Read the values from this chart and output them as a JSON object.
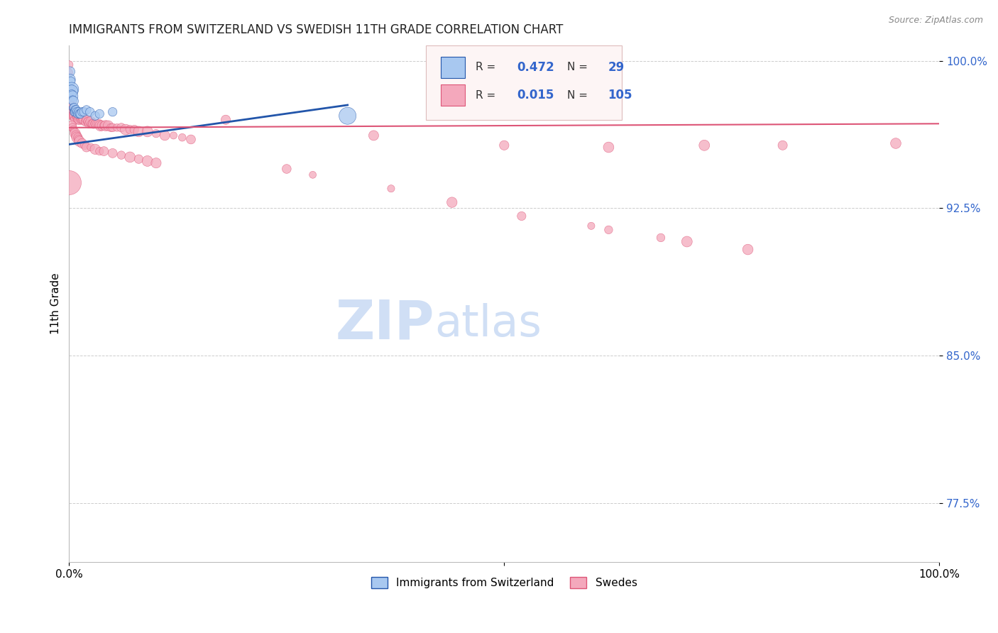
{
  "title": "IMMIGRANTS FROM SWITZERLAND VS SWEDISH 11TH GRADE CORRELATION CHART",
  "source": "Source: ZipAtlas.com",
  "ylabel": "11th Grade",
  "xlim": [
    0.0,
    1.0
  ],
  "ylim": [
    0.745,
    1.008
  ],
  "yticks": [
    1.0,
    0.925,
    0.85,
    0.775
  ],
  "ytick_labels": [
    "100.0%",
    "92.5%",
    "85.0%",
    "77.5%"
  ],
  "blue_color": "#A8C8F0",
  "pink_color": "#F4A8BC",
  "trend_blue_color": "#2255AA",
  "trend_pink_color": "#DD5577",
  "watermark_color": "#D0DFF5",
  "blue_scatter_x": [
    0.001,
    0.001,
    0.002,
    0.002,
    0.003,
    0.003,
    0.003,
    0.004,
    0.004,
    0.005,
    0.005,
    0.006,
    0.006,
    0.007,
    0.007,
    0.008,
    0.009,
    0.01,
    0.011,
    0.012,
    0.013,
    0.015,
    0.017,
    0.02,
    0.024,
    0.03,
    0.035,
    0.05,
    0.32
  ],
  "blue_scatter_y": [
    0.9945,
    0.9905,
    0.9895,
    0.9855,
    0.9855,
    0.9845,
    0.983,
    0.982,
    0.98,
    0.9795,
    0.976,
    0.976,
    0.974,
    0.975,
    0.974,
    0.975,
    0.974,
    0.973,
    0.974,
    0.973,
    0.973,
    0.974,
    0.974,
    0.975,
    0.974,
    0.972,
    0.973,
    0.974,
    0.972
  ],
  "blue_scatter_sizes": [
    100,
    120,
    80,
    90,
    200,
    160,
    80,
    120,
    80,
    100,
    80,
    90,
    80,
    80,
    80,
    80,
    80,
    80,
    80,
    80,
    80,
    80,
    80,
    80,
    80,
    80,
    80,
    80,
    300
  ],
  "pink_scatter_x": [
    0.001,
    0.001,
    0.002,
    0.002,
    0.003,
    0.003,
    0.004,
    0.004,
    0.005,
    0.005,
    0.006,
    0.006,
    0.007,
    0.007,
    0.008,
    0.009,
    0.01,
    0.01,
    0.011,
    0.012,
    0.013,
    0.013,
    0.014,
    0.015,
    0.016,
    0.017,
    0.018,
    0.019,
    0.02,
    0.021,
    0.022,
    0.023,
    0.024,
    0.025,
    0.026,
    0.027,
    0.028,
    0.029,
    0.03,
    0.032,
    0.034,
    0.036,
    0.038,
    0.04,
    0.042,
    0.045,
    0.048,
    0.05,
    0.055,
    0.06,
    0.065,
    0.07,
    0.075,
    0.08,
    0.09,
    0.1,
    0.11,
    0.12,
    0.13,
    0.14,
    0.003,
    0.004,
    0.005,
    0.006,
    0.007,
    0.008,
    0.009,
    0.01,
    0.011,
    0.012,
    0.015,
    0.018,
    0.02,
    0.025,
    0.03,
    0.035,
    0.04,
    0.05,
    0.06,
    0.07,
    0.08,
    0.09,
    0.1,
    0.25,
    0.28,
    0.37,
    0.44,
    0.52,
    0.6,
    0.62,
    0.68,
    0.71,
    0.78,
    0.0,
    0.0,
    0.18,
    0.35,
    0.5,
    0.62,
    0.73,
    0.82,
    0.95
  ],
  "pink_scatter_y": [
    0.9845,
    0.978,
    0.977,
    0.974,
    0.975,
    0.973,
    0.974,
    0.972,
    0.974,
    0.972,
    0.973,
    0.972,
    0.972,
    0.97,
    0.972,
    0.971,
    0.972,
    0.97,
    0.971,
    0.97,
    0.971,
    0.97,
    0.97,
    0.971,
    0.97,
    0.97,
    0.969,
    0.969,
    0.97,
    0.969,
    0.969,
    0.968,
    0.968,
    0.969,
    0.968,
    0.968,
    0.968,
    0.968,
    0.968,
    0.968,
    0.968,
    0.967,
    0.967,
    0.967,
    0.967,
    0.967,
    0.966,
    0.966,
    0.966,
    0.966,
    0.965,
    0.965,
    0.965,
    0.964,
    0.964,
    0.963,
    0.962,
    0.962,
    0.961,
    0.96,
    0.967,
    0.966,
    0.965,
    0.964,
    0.963,
    0.962,
    0.961,
    0.961,
    0.96,
    0.959,
    0.958,
    0.957,
    0.956,
    0.956,
    0.955,
    0.954,
    0.954,
    0.953,
    0.952,
    0.951,
    0.95,
    0.949,
    0.948,
    0.945,
    0.942,
    0.935,
    0.928,
    0.921,
    0.916,
    0.914,
    0.91,
    0.908,
    0.904,
    0.998,
    0.994,
    0.97,
    0.962,
    0.957,
    0.956,
    0.957,
    0.957,
    0.958
  ],
  "pink_large_x": [
    0.0
  ],
  "pink_large_y": [
    0.938
  ],
  "pink_large_size": [
    600
  ],
  "blue_trend_x": [
    0.0,
    0.32
  ],
  "blue_trend_y": [
    0.9575,
    0.9775
  ],
  "pink_trend_x": [
    0.0,
    1.0
  ],
  "pink_trend_y": [
    0.966,
    0.968
  ]
}
